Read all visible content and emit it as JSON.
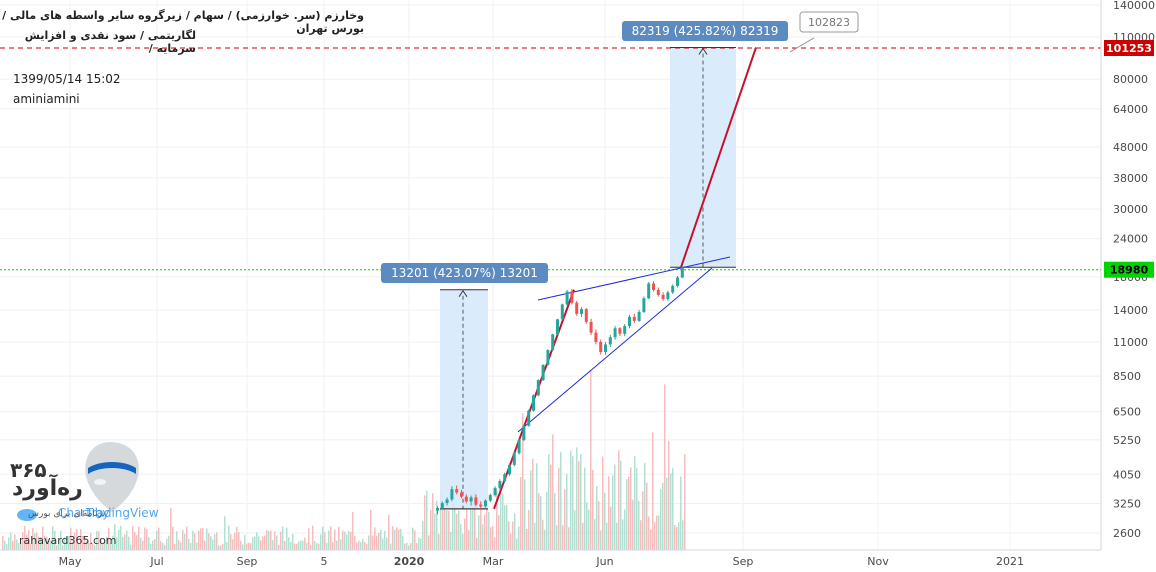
{
  "header": {
    "line1": "وخارزم (سر. خوارزمی) / سهام / زیرگروه سایر واسطه های مالی / بورس تهران",
    "line2": "لگاریتمی / سود نقدی و افزایش سرمایه /",
    "timestamp": "1399/05/14 15:02",
    "author": "aminiamini"
  },
  "branding": {
    "name_fa": "ره‌آورد",
    "number_fa": "۳۶۵",
    "tagline_fa": "برنامه‌ای برای بورس",
    "website": "rahavard365.com",
    "tradingview": "TradingView",
    "chart_by": "Chart by"
  },
  "colors": {
    "up": "#26a69a",
    "down": "#ef5350",
    "trendline": "#1f2bd6",
    "projection": "#c8102e",
    "measure_fill": "#d6e9fc",
    "measure_label_bg": "#5b8bc0",
    "current_price": "#00d400",
    "target_price": "#cc0000",
    "grid": "#eef0f3"
  },
  "chart_data": {
    "type": "candlestick",
    "scale": "log",
    "ylim": [
      2400,
      150000
    ],
    "y_ticks": [
      2600,
      3250,
      4050,
      5250,
      6500,
      8500,
      11000,
      14000,
      18000,
      24000,
      30000,
      38000,
      48000,
      64000,
      80000,
      110000,
      140000
    ],
    "x_ticks": [
      "May",
      "Jul",
      "Sep",
      "5",
      "2020",
      "Mar",
      "Jun",
      "Sep",
      "Nov",
      "2021"
    ],
    "grid": true,
    "price_tags": [
      {
        "value": 101253,
        "label": "101253"
      },
      {
        "value": 18980,
        "label": "18980"
      }
    ],
    "callout": {
      "value": 102823,
      "label": "102823"
    },
    "measures": [
      {
        "label": "13201 (423.07%) 13201",
        "from": 3120,
        "to": 16321
      },
      {
        "label": "82319 (425.82%) 82319",
        "from": 19330,
        "to": 101649
      }
    ],
    "candles": [
      {
        "o": 3080,
        "h": 3180,
        "l": 2990,
        "c": 3140
      },
      {
        "o": 3140,
        "h": 3300,
        "l": 3100,
        "c": 3260
      },
      {
        "o": 3260,
        "h": 3400,
        "l": 3200,
        "c": 3350
      },
      {
        "o": 3350,
        "h": 3700,
        "l": 3300,
        "c": 3620
      },
      {
        "o": 3620,
        "h": 3720,
        "l": 3480,
        "c": 3530
      },
      {
        "o": 3530,
        "h": 3600,
        "l": 3380,
        "c": 3420
      },
      {
        "o": 3420,
        "h": 3480,
        "l": 3250,
        "c": 3300
      },
      {
        "o": 3300,
        "h": 3450,
        "l": 3200,
        "c": 3400
      },
      {
        "o": 3400,
        "h": 3480,
        "l": 3180,
        "c": 3220
      },
      {
        "o": 3220,
        "h": 3300,
        "l": 3120,
        "c": 3180
      },
      {
        "o": 3180,
        "h": 3350,
        "l": 3150,
        "c": 3320
      },
      {
        "o": 3320,
        "h": 3500,
        "l": 3280,
        "c": 3460
      },
      {
        "o": 3460,
        "h": 3700,
        "l": 3420,
        "c": 3650
      },
      {
        "o": 3650,
        "h": 3900,
        "l": 3600,
        "c": 3850
      },
      {
        "o": 3850,
        "h": 4100,
        "l": 3800,
        "c": 4050
      },
      {
        "o": 4050,
        "h": 4400,
        "l": 4000,
        "c": 4350
      },
      {
        "o": 4350,
        "h": 4800,
        "l": 4300,
        "c": 4750
      },
      {
        "o": 4750,
        "h": 5300,
        "l": 4700,
        "c": 5250
      },
      {
        "o": 5250,
        "h": 5900,
        "l": 5200,
        "c": 5850
      },
      {
        "o": 5850,
        "h": 6600,
        "l": 5800,
        "c": 6550
      },
      {
        "o": 6550,
        "h": 7400,
        "l": 6500,
        "c": 7350
      },
      {
        "o": 7350,
        "h": 8300,
        "l": 7300,
        "c": 8250
      },
      {
        "o": 8250,
        "h": 9300,
        "l": 8200,
        "c": 9250
      },
      {
        "o": 9250,
        "h": 10400,
        "l": 9200,
        "c": 10350
      },
      {
        "o": 10350,
        "h": 11700,
        "l": 10300,
        "c": 11650
      },
      {
        "o": 11650,
        "h": 13100,
        "l": 11600,
        "c": 13050
      },
      {
        "o": 13050,
        "h": 14700,
        "l": 13000,
        "c": 14600
      },
      {
        "o": 14600,
        "h": 16300,
        "l": 14500,
        "c": 16100
      },
      {
        "o": 16100,
        "h": 16400,
        "l": 14600,
        "c": 14800
      },
      {
        "o": 14800,
        "h": 15000,
        "l": 13400,
        "c": 13600
      },
      {
        "o": 13600,
        "h": 14300,
        "l": 13300,
        "c": 14100
      },
      {
        "o": 14100,
        "h": 14200,
        "l": 12600,
        "c": 12800
      },
      {
        "o": 12800,
        "h": 13100,
        "l": 11600,
        "c": 11800
      },
      {
        "o": 11800,
        "h": 12100,
        "l": 10800,
        "c": 11000
      },
      {
        "o": 11000,
        "h": 11200,
        "l": 10000,
        "c": 10200
      },
      {
        "o": 10200,
        "h": 11000,
        "l": 10000,
        "c": 10800
      },
      {
        "o": 10800,
        "h": 11600,
        "l": 10600,
        "c": 11400
      },
      {
        "o": 11400,
        "h": 12400,
        "l": 11200,
        "c": 12200
      },
      {
        "o": 12200,
        "h": 12300,
        "l": 11500,
        "c": 11700
      },
      {
        "o": 11700,
        "h": 12600,
        "l": 11500,
        "c": 12400
      },
      {
        "o": 12400,
        "h": 13500,
        "l": 12200,
        "c": 13300
      },
      {
        "o": 13300,
        "h": 13600,
        "l": 12700,
        "c": 12900
      },
      {
        "o": 12900,
        "h": 14000,
        "l": 12800,
        "c": 13800
      },
      {
        "o": 13800,
        "h": 15500,
        "l": 13700,
        "c": 15300
      },
      {
        "o": 15300,
        "h": 17300,
        "l": 15200,
        "c": 17100
      },
      {
        "o": 17100,
        "h": 17400,
        "l": 16100,
        "c": 16300
      },
      {
        "o": 16300,
        "h": 16600,
        "l": 15500,
        "c": 15700
      },
      {
        "o": 15700,
        "h": 16000,
        "l": 15000,
        "c": 15200
      },
      {
        "o": 15200,
        "h": 16200,
        "l": 15000,
        "c": 16000
      },
      {
        "o": 16000,
        "h": 17000,
        "l": 15800,
        "c": 16800
      },
      {
        "o": 16800,
        "h": 18100,
        "l": 16600,
        "c": 17900
      },
      {
        "o": 17900,
        "h": 19500,
        "l": 17800,
        "c": 19300
      }
    ]
  }
}
